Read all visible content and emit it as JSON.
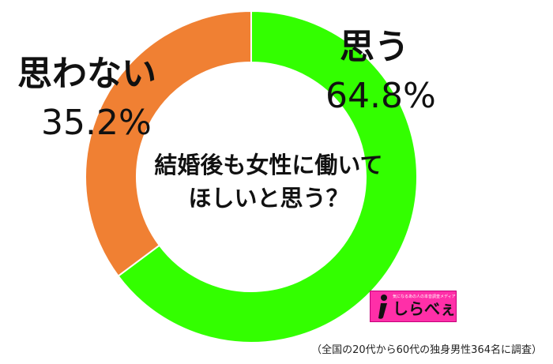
{
  "chart_data": {
    "type": "pie",
    "donut": true,
    "title": "結婚後も女性に働いてほしいと思う？",
    "categories": [
      "思う",
      "思わない"
    ],
    "values": [
      64.8,
      35.2
    ],
    "value_labels": [
      "64.8%",
      "35.2%"
    ],
    "colors": [
      "#33ff00",
      "#f08033"
    ],
    "start_angle_deg": 0,
    "direction": "clockwise",
    "legend": "none"
  },
  "center_text": {
    "line1": "結婚後も女性に働いて",
    "line2": "ほしいと思う？"
  },
  "logo": {
    "text": "しらべぇ",
    "tagline": "気になるあの人の本音調査メディア"
  },
  "footnote": "（全国の20代から60代の独身男性364名に調査）"
}
